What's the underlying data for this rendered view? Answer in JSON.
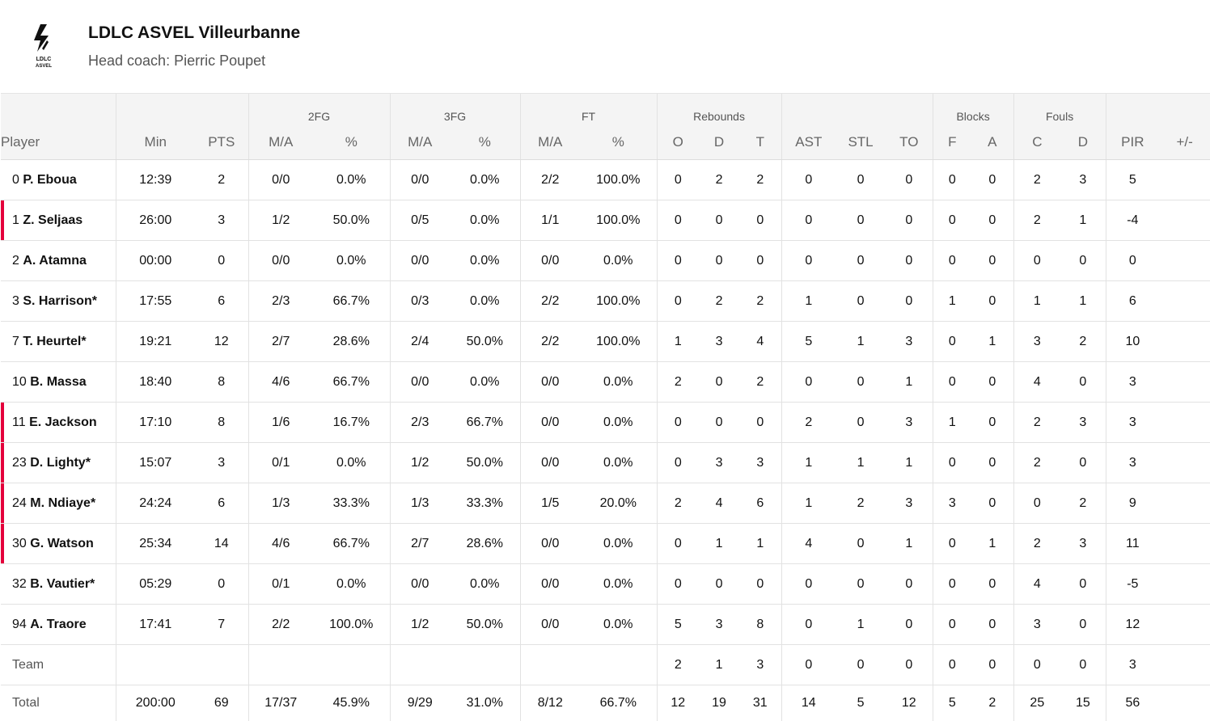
{
  "team": {
    "name": "LDLC ASVEL Villeurbanne",
    "coach": "Head coach: Pierric Poupet",
    "logo_text_top": "LDLC",
    "logo_text_bottom": "ASVEL",
    "accent": "#e4003b"
  },
  "groups": {
    "fg2": "2FG",
    "fg3": "3FG",
    "ft": "FT",
    "rebounds": "Rebounds",
    "blocks": "Blocks",
    "fouls": "Fouls"
  },
  "columns": [
    "Player",
    "Min",
    "PTS",
    "M/A",
    "%",
    "M/A",
    "%",
    "M/A",
    "%",
    "O",
    "D",
    "T",
    "AST",
    "STL",
    "TO",
    "F",
    "A",
    "C",
    "D",
    "PIR",
    "+/-"
  ],
  "players": [
    {
      "num": "0",
      "name": "P. Eboua",
      "starter": false,
      "stats": [
        "12:39",
        "2",
        "0/0",
        "0.0%",
        "0/0",
        "0.0%",
        "2/2",
        "100.0%",
        "0",
        "2",
        "2",
        "0",
        "0",
        "0",
        "0",
        "0",
        "2",
        "3",
        "5",
        ""
      ]
    },
    {
      "num": "1",
      "name": "Z. Seljaas",
      "starter": true,
      "stats": [
        "26:00",
        "3",
        "1/2",
        "50.0%",
        "0/5",
        "0.0%",
        "1/1",
        "100.0%",
        "0",
        "0",
        "0",
        "0",
        "0",
        "0",
        "0",
        "0",
        "2",
        "1",
        "-4",
        ""
      ]
    },
    {
      "num": "2",
      "name": "A. Atamna",
      "starter": false,
      "stats": [
        "00:00",
        "0",
        "0/0",
        "0.0%",
        "0/0",
        "0.0%",
        "0/0",
        "0.0%",
        "0",
        "0",
        "0",
        "0",
        "0",
        "0",
        "0",
        "0",
        "0",
        "0",
        "0",
        ""
      ]
    },
    {
      "num": "3",
      "name": "S. Harrison*",
      "starter": false,
      "stats": [
        "17:55",
        "6",
        "2/3",
        "66.7%",
        "0/3",
        "0.0%",
        "2/2",
        "100.0%",
        "0",
        "2",
        "2",
        "1",
        "0",
        "0",
        "1",
        "0",
        "1",
        "1",
        "6",
        ""
      ]
    },
    {
      "num": "7",
      "name": "T. Heurtel*",
      "starter": false,
      "stats": [
        "19:21",
        "12",
        "2/7",
        "28.6%",
        "2/4",
        "50.0%",
        "2/2",
        "100.0%",
        "1",
        "3",
        "4",
        "5",
        "1",
        "3",
        "0",
        "1",
        "3",
        "2",
        "10",
        ""
      ]
    },
    {
      "num": "10",
      "name": "B. Massa",
      "starter": false,
      "stats": [
        "18:40",
        "8",
        "4/6",
        "66.7%",
        "0/0",
        "0.0%",
        "0/0",
        "0.0%",
        "2",
        "0",
        "2",
        "0",
        "0",
        "1",
        "0",
        "0",
        "4",
        "0",
        "3",
        ""
      ]
    },
    {
      "num": "11",
      "name": "E. Jackson",
      "starter": true,
      "stats": [
        "17:10",
        "8",
        "1/6",
        "16.7%",
        "2/3",
        "66.7%",
        "0/0",
        "0.0%",
        "0",
        "0",
        "0",
        "2",
        "0",
        "3",
        "1",
        "0",
        "2",
        "3",
        "3",
        ""
      ]
    },
    {
      "num": "23",
      "name": "D. Lighty*",
      "starter": true,
      "stats": [
        "15:07",
        "3",
        "0/1",
        "0.0%",
        "1/2",
        "50.0%",
        "0/0",
        "0.0%",
        "0",
        "3",
        "3",
        "1",
        "1",
        "1",
        "0",
        "0",
        "2",
        "0",
        "3",
        ""
      ]
    },
    {
      "num": "24",
      "name": "M. Ndiaye*",
      "starter": true,
      "stats": [
        "24:24",
        "6",
        "1/3",
        "33.3%",
        "1/3",
        "33.3%",
        "1/5",
        "20.0%",
        "2",
        "4",
        "6",
        "1",
        "2",
        "3",
        "3",
        "0",
        "0",
        "2",
        "9",
        ""
      ]
    },
    {
      "num": "30",
      "name": "G. Watson",
      "starter": true,
      "stats": [
        "25:34",
        "14",
        "4/6",
        "66.7%",
        "2/7",
        "28.6%",
        "0/0",
        "0.0%",
        "0",
        "1",
        "1",
        "4",
        "0",
        "1",
        "0",
        "1",
        "2",
        "3",
        "11",
        ""
      ]
    },
    {
      "num": "32",
      "name": "B. Vautier*",
      "starter": false,
      "stats": [
        "05:29",
        "0",
        "0/1",
        "0.0%",
        "0/0",
        "0.0%",
        "0/0",
        "0.0%",
        "0",
        "0",
        "0",
        "0",
        "0",
        "0",
        "0",
        "0",
        "4",
        "0",
        "-5",
        ""
      ]
    },
    {
      "num": "94",
      "name": "A. Traore",
      "starter": false,
      "stats": [
        "17:41",
        "7",
        "2/2",
        "100.0%",
        "1/2",
        "50.0%",
        "0/0",
        "0.0%",
        "5",
        "3",
        "8",
        "0",
        "1",
        "0",
        "0",
        "0",
        "3",
        "0",
        "12",
        ""
      ]
    }
  ],
  "team_row": {
    "label": "Team",
    "stats": [
      "",
      "",
      "",
      "",
      "",
      "",
      "",
      "",
      "2",
      "1",
      "3",
      "0",
      "0",
      "0",
      "0",
      "0",
      "0",
      "0",
      "3",
      ""
    ]
  },
  "total_row": {
    "label": "Total",
    "stats": [
      "200:00",
      "69",
      "17/37",
      "45.9%",
      "9/29",
      "31.0%",
      "8/12",
      "66.7%",
      "12",
      "19",
      "31",
      "14",
      "5",
      "12",
      "5",
      "2",
      "25",
      "15",
      "56",
      ""
    ]
  }
}
